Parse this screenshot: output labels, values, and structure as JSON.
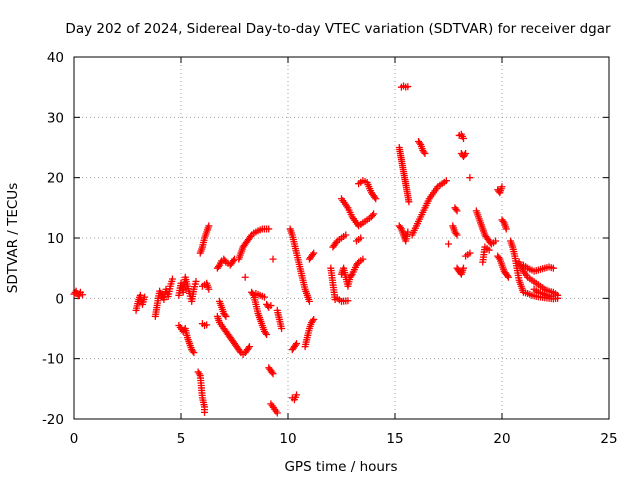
{
  "chart_data": {
    "type": "scatter",
    "title": "Day 202 of 2024, Sidereal Day-to-day VTEC variation (SDTVAR) for receiver dgar",
    "xlabel": "GPS time / hours",
    "ylabel": "SDTVAR / TECUs",
    "xlim": [
      0,
      25
    ],
    "ylim": [
      -20,
      40
    ],
    "xticks": [
      0,
      5,
      10,
      15,
      20,
      25
    ],
    "yticks": [
      -20,
      -10,
      0,
      10,
      20,
      30,
      40
    ],
    "grid": true,
    "marker": "+",
    "color": "#ff0000",
    "segments": [
      [
        [
          0.0,
          0.7
        ],
        [
          0.1,
          1.2
        ],
        [
          0.2,
          0.4
        ],
        [
          0.3,
          1.0
        ],
        [
          0.4,
          0.6
        ]
      ],
      [
        [
          2.9,
          -2.0
        ],
        [
          3.0,
          -0.5
        ],
        [
          3.1,
          0.5
        ],
        [
          3.2,
          -1.0
        ],
        [
          3.3,
          0.2
        ]
      ],
      [
        [
          3.8,
          -3.0
        ],
        [
          3.9,
          -0.8
        ],
        [
          4.0,
          1.2
        ],
        [
          4.1,
          0.5
        ],
        [
          4.2,
          -0.2
        ],
        [
          4.3,
          1.5
        ],
        [
          4.4,
          0.3
        ],
        [
          4.5,
          2.0
        ],
        [
          4.6,
          3.2
        ]
      ],
      [
        [
          4.9,
          -4.5
        ],
        [
          5.1,
          -5.5
        ],
        [
          5.2,
          -5.0
        ],
        [
          5.3,
          -6.5
        ],
        [
          5.4,
          -7.5
        ],
        [
          5.5,
          -8.5
        ],
        [
          5.6,
          -9.0
        ]
      ],
      [
        [
          4.9,
          0.5
        ],
        [
          5.0,
          2.5
        ],
        [
          5.1,
          1.0
        ],
        [
          5.2,
          3.5
        ],
        [
          5.3,
          2.0
        ],
        [
          5.4,
          0.8
        ],
        [
          5.5,
          -0.5
        ],
        [
          5.6,
          1.5
        ],
        [
          5.7,
          2.8
        ]
      ],
      [
        [
          5.8,
          -12.2
        ],
        [
          5.9,
          -12.8
        ],
        [
          6.0,
          -16.5
        ],
        [
          6.1,
          -18.0
        ],
        [
          6.1,
          -18.9
        ]
      ],
      [
        [
          5.9,
          7.5
        ],
        [
          6.0,
          8.5
        ],
        [
          6.1,
          10.0
        ],
        [
          6.2,
          11.0
        ],
        [
          6.3,
          12.0
        ]
      ],
      [
        [
          6.0,
          -4.2
        ],
        [
          6.1,
          -4.5
        ],
        [
          6.2,
          -4.4
        ]
      ],
      [
        [
          6.0,
          2.0
        ],
        [
          6.2,
          2.5
        ],
        [
          6.3,
          1.5
        ]
      ],
      [
        [
          6.7,
          -3.0
        ],
        [
          6.8,
          -4.0
        ],
        [
          7.0,
          -5.0
        ],
        [
          7.1,
          -5.5
        ],
        [
          7.2,
          -6.0
        ],
        [
          7.3,
          -6.5
        ],
        [
          7.4,
          -7.0
        ],
        [
          7.5,
          -7.5
        ],
        [
          7.6,
          -8.0
        ],
        [
          7.7,
          -8.5
        ],
        [
          7.8,
          -9.0
        ],
        [
          7.9,
          -9.3
        ],
        [
          8.0,
          -9.0
        ],
        [
          8.1,
          -8.5
        ],
        [
          8.2,
          -8.0
        ]
      ],
      [
        [
          6.8,
          -0.5
        ],
        [
          6.9,
          -1.5
        ],
        [
          7.0,
          -2.5
        ],
        [
          7.1,
          -3.0
        ]
      ],
      [
        [
          6.7,
          5.0
        ],
        [
          6.8,
          5.5
        ],
        [
          6.9,
          6.2
        ],
        [
          7.0,
          6.5
        ],
        [
          7.1,
          6.0
        ],
        [
          7.2,
          5.8
        ],
        [
          7.3,
          5.5
        ],
        [
          7.4,
          6.0
        ],
        [
          7.5,
          6.5
        ]
      ],
      [
        [
          7.7,
          6.5
        ],
        [
          7.8,
          7.5
        ],
        [
          7.9,
          8.5
        ],
        [
          8.0,
          9.0
        ],
        [
          8.1,
          9.5
        ],
        [
          8.2,
          10.0
        ],
        [
          8.3,
          10.5
        ],
        [
          8.4,
          10.8
        ],
        [
          8.5,
          11.0
        ],
        [
          8.6,
          11.2
        ],
        [
          8.8,
          11.5
        ],
        [
          9.1,
          11.5
        ]
      ],
      [
        [
          8.0,
          3.5
        ]
      ],
      [
        [
          8.3,
          1.0
        ],
        [
          8.4,
          0.5
        ],
        [
          8.5,
          -1.0
        ],
        [
          8.6,
          -2.5
        ],
        [
          8.7,
          -3.5
        ],
        [
          8.8,
          -4.5
        ],
        [
          8.9,
          -5.5
        ],
        [
          9.0,
          -6.0
        ]
      ],
      [
        [
          8.5,
          0.8
        ],
        [
          8.7,
          0.5
        ],
        [
          8.9,
          0.2
        ]
      ],
      [
        [
          9.0,
          -1.0
        ],
        [
          9.1,
          -1.5
        ],
        [
          9.2,
          -1.2
        ]
      ],
      [
        [
          9.1,
          -11.5
        ],
        [
          9.2,
          -12.0
        ],
        [
          9.3,
          -12.5
        ]
      ],
      [
        [
          9.2,
          -17.5
        ],
        [
          9.5,
          -19.0
        ]
      ],
      [
        [
          9.3,
          6.5
        ]
      ],
      [
        [
          9.5,
          -2.0
        ],
        [
          9.6,
          -3.5
        ],
        [
          9.7,
          -5.0
        ]
      ],
      [
        [
          10.2,
          -8.5
        ],
        [
          10.3,
          -8.0
        ],
        [
          10.4,
          -7.5
        ]
      ],
      [
        [
          10.1,
          11.5
        ],
        [
          10.2,
          10.5
        ],
        [
          10.3,
          9.0
        ],
        [
          10.4,
          7.5
        ],
        [
          10.5,
          6.0
        ],
        [
          10.6,
          4.5
        ],
        [
          10.7,
          3.0
        ],
        [
          10.8,
          1.5
        ],
        [
          10.9,
          0.5
        ],
        [
          11.0,
          -0.5
        ]
      ],
      [
        [
          10.2,
          -16.5
        ],
        [
          10.3,
          -16.8
        ],
        [
          10.4,
          -16.0
        ]
      ],
      [
        [
          10.8,
          -8.0
        ],
        [
          10.9,
          -6.5
        ],
        [
          11.0,
          -5.0
        ],
        [
          11.1,
          -4.0
        ],
        [
          11.2,
          -3.5
        ]
      ],
      [
        [
          11.0,
          6.5
        ],
        [
          11.1,
          7.0
        ],
        [
          11.2,
          7.5
        ]
      ],
      [
        [
          12.1,
          8.5
        ],
        [
          12.2,
          9.0
        ],
        [
          12.3,
          9.5
        ],
        [
          12.5,
          10.0
        ],
        [
          12.7,
          10.5
        ]
      ],
      [
        [
          12.0,
          5.0
        ],
        [
          12.2,
          -0.2
        ],
        [
          12.3,
          0.0
        ],
        [
          12.5,
          -0.5
        ],
        [
          12.8,
          -0.4
        ]
      ],
      [
        [
          12.5,
          4.0
        ],
        [
          12.6,
          5.0
        ],
        [
          12.8,
          2.0
        ],
        [
          12.9,
          3.5
        ],
        [
          13.0,
          4.0
        ],
        [
          13.2,
          5.5
        ],
        [
          13.3,
          6.0
        ],
        [
          13.5,
          6.5
        ]
      ],
      [
        [
          12.5,
          16.5
        ],
        [
          12.8,
          15.0
        ],
        [
          13.0,
          13.5
        ],
        [
          13.3,
          12.0
        ],
        [
          13.5,
          12.5
        ],
        [
          13.7,
          13.0
        ],
        [
          13.9,
          13.5
        ],
        [
          14.0,
          14.0
        ]
      ],
      [
        [
          13.3,
          19.0
        ],
        [
          13.5,
          19.5
        ],
        [
          13.7,
          19.2
        ],
        [
          13.9,
          17.5
        ],
        [
          14.0,
          17.0
        ],
        [
          14.1,
          16.5
        ]
      ],
      [
        [
          13.2,
          9.5
        ],
        [
          13.4,
          10.0
        ]
      ],
      [
        [
          15.2,
          25.0
        ],
        [
          15.25,
          24.0
        ],
        [
          15.3,
          23.0
        ],
        [
          15.35,
          22.0
        ],
        [
          15.4,
          21.0
        ],
        [
          15.45,
          20.0
        ],
        [
          15.5,
          19.0
        ],
        [
          15.55,
          18.0
        ],
        [
          15.6,
          17.0
        ],
        [
          15.65,
          16.0
        ]
      ],
      [
        [
          15.3,
          35.0
        ],
        [
          15.4,
          35.2
        ],
        [
          15.5,
          35.0
        ],
        [
          15.6,
          35.1
        ]
      ],
      [
        [
          15.2,
          12.0
        ],
        [
          15.3,
          11.5
        ],
        [
          15.4,
          10.5
        ],
        [
          15.5,
          9.5
        ],
        [
          15.6,
          11.0
        ]
      ],
      [
        [
          16.1,
          26.0
        ],
        [
          16.2,
          25.5
        ],
        [
          16.3,
          24.5
        ],
        [
          16.4,
          24.0
        ]
      ],
      [
        [
          15.8,
          10.5
        ],
        [
          16.0,
          12.0
        ],
        [
          16.2,
          13.5
        ],
        [
          16.4,
          15.0
        ],
        [
          16.6,
          16.5
        ],
        [
          16.8,
          17.5
        ],
        [
          17.0,
          18.5
        ],
        [
          17.2,
          19.0
        ],
        [
          17.4,
          19.5
        ]
      ],
      [
        [
          17.5,
          9.0
        ]
      ],
      [
        [
          17.7,
          12.0
        ],
        [
          17.8,
          11.0
        ],
        [
          17.9,
          10.5
        ]
      ],
      [
        [
          17.8,
          15.0
        ],
        [
          17.9,
          14.5
        ]
      ],
      [
        [
          17.9,
          5.0
        ],
        [
          18.0,
          4.5
        ],
        [
          18.1,
          4.0
        ],
        [
          18.2,
          5.0
        ]
      ],
      [
        [
          18.0,
          27.0
        ],
        [
          18.1,
          27.2
        ],
        [
          18.2,
          26.5
        ]
      ],
      [
        [
          18.1,
          24.0
        ],
        [
          18.2,
          23.5
        ],
        [
          18.3,
          24.0
        ]
      ],
      [
        [
          18.5,
          20.0
        ]
      ],
      [
        [
          18.3,
          7.0
        ],
        [
          18.5,
          7.5
        ]
      ],
      [
        [
          18.8,
          14.5
        ],
        [
          18.9,
          13.5
        ],
        [
          19.0,
          12.5
        ],
        [
          19.1,
          11.5
        ],
        [
          19.2,
          10.5
        ],
        [
          19.3,
          10.0
        ],
        [
          19.4,
          9.5
        ],
        [
          19.5,
          9.0
        ],
        [
          19.6,
          9.2
        ],
        [
          19.7,
          9.5
        ]
      ],
      [
        [
          19.1,
          6.0
        ],
        [
          19.2,
          8.5
        ],
        [
          19.4,
          8.0
        ]
      ],
      [
        [
          19.8,
          18.0
        ],
        [
          19.9,
          17.5
        ],
        [
          20.0,
          18.5
        ]
      ],
      [
        [
          20.0,
          13.0
        ],
        [
          20.1,
          12.5
        ],
        [
          20.2,
          11.5
        ]
      ],
      [
        [
          19.8,
          7.0
        ],
        [
          19.9,
          6.5
        ],
        [
          20.0,
          5.5
        ],
        [
          20.1,
          4.5
        ],
        [
          20.2,
          4.0
        ],
        [
          20.3,
          3.5
        ]
      ],
      [
        [
          20.4,
          9.5
        ],
        [
          20.5,
          8.5
        ],
        [
          20.6,
          7.0
        ],
        [
          20.7,
          5.0
        ],
        [
          20.8,
          3.0
        ],
        [
          20.9,
          2.0
        ],
        [
          21.0,
          1.0
        ],
        [
          21.2,
          0.8
        ],
        [
          21.4,
          0.5
        ],
        [
          21.6,
          0.3
        ],
        [
          21.8,
          0.2
        ],
        [
          22.0,
          0.1
        ],
        [
          22.2,
          0.0
        ],
        [
          22.4,
          -0.1
        ],
        [
          22.6,
          0.0
        ]
      ],
      [
        [
          20.8,
          6.0
        ],
        [
          21.0,
          4.5
        ],
        [
          21.2,
          3.5
        ],
        [
          21.4,
          3.0
        ],
        [
          21.6,
          2.5
        ],
        [
          21.8,
          2.0
        ],
        [
          22.0,
          1.5
        ],
        [
          22.2,
          1.2
        ],
        [
          22.4,
          1.0
        ],
        [
          22.6,
          0.5
        ]
      ],
      [
        [
          21.0,
          5.5
        ],
        [
          21.2,
          5.0
        ],
        [
          21.5,
          4.5
        ],
        [
          21.8,
          4.8
        ],
        [
          22.0,
          5.0
        ],
        [
          22.2,
          5.2
        ],
        [
          22.4,
          5.0
        ]
      ],
      [
        [
          21.5,
          1.5
        ],
        [
          21.7,
          1.0
        ],
        [
          21.9,
          0.8
        ],
        [
          22.1,
          0.5
        ],
        [
          22.3,
          0.3
        ]
      ]
    ]
  }
}
